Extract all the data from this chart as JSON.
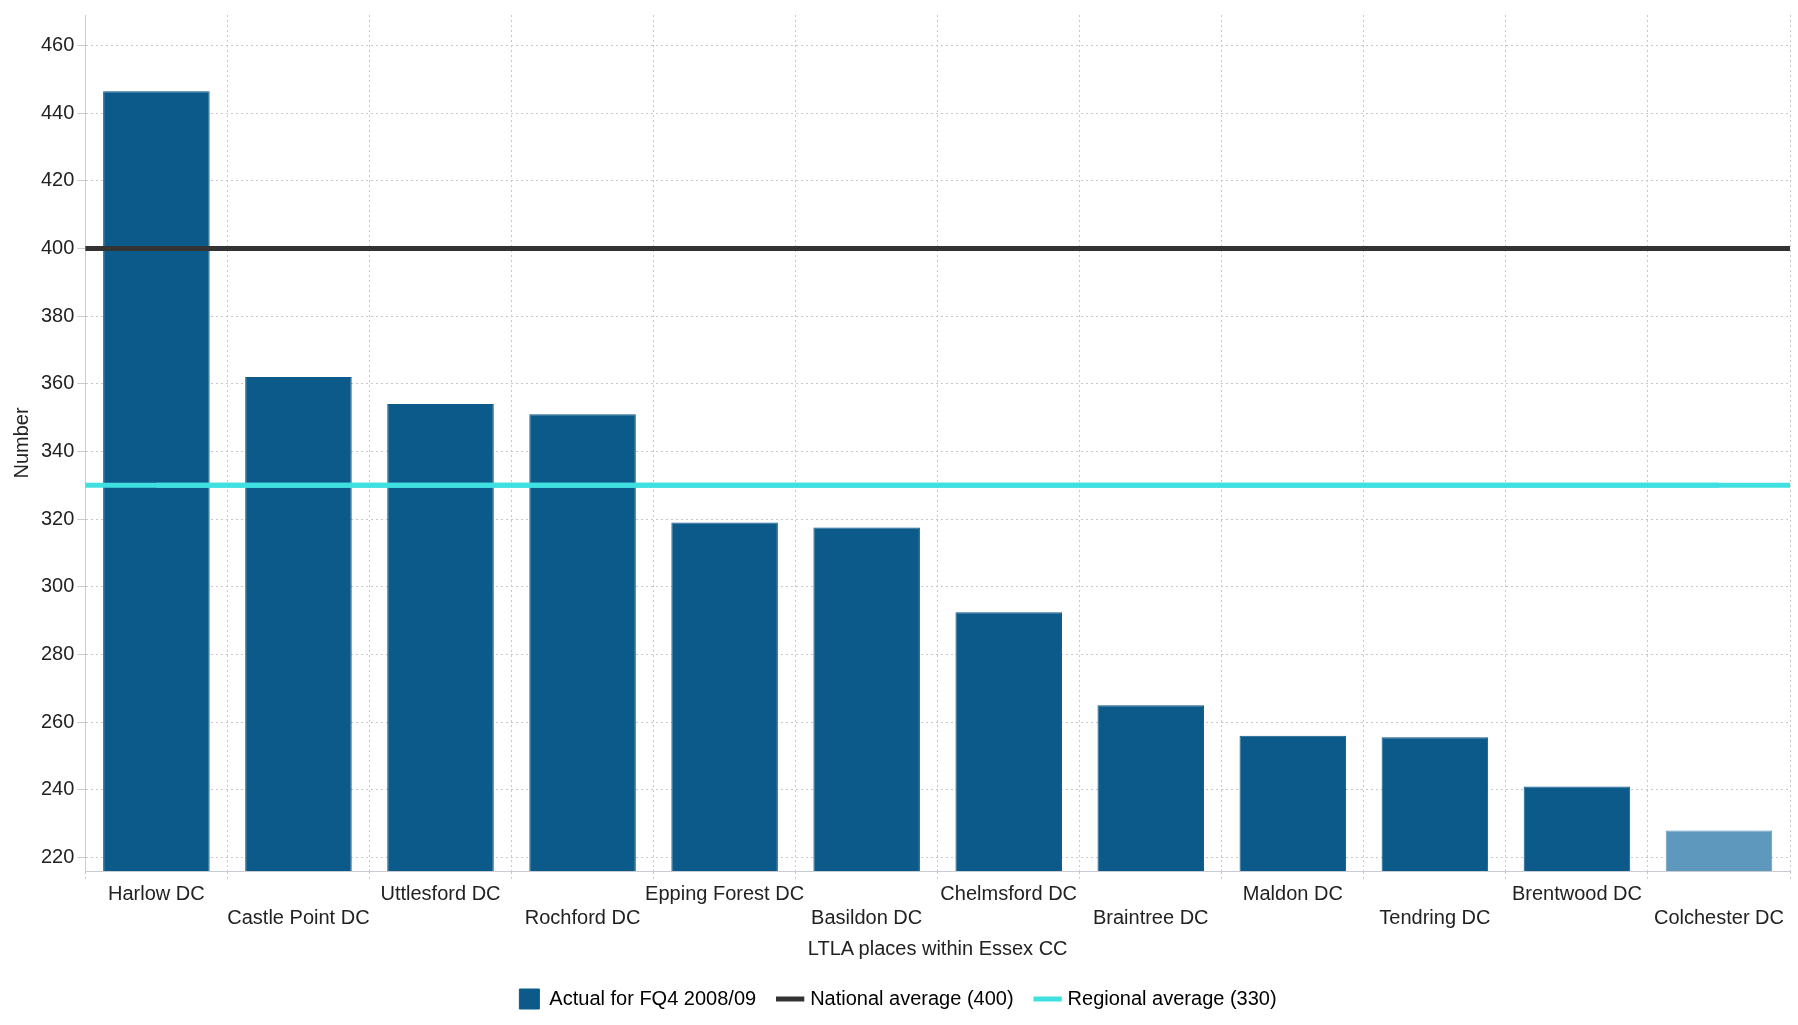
{
  "chart_data": {
    "type": "bar",
    "xlabel": "LTLA places within Essex CC",
    "ylabel": "Number",
    "categories": [
      "Harlow DC",
      "Castle Point DC",
      "Uttlesford DC",
      "Rochford DC",
      "Epping Forest DC",
      "Basildon DC",
      "Chelmsford DC",
      "Braintree DC",
      "Maldon DC",
      "Tendring DC",
      "Brentwood DC",
      "Colchester DC"
    ],
    "series": [
      {
        "name": "Actual for FQ4 2008/09",
        "color": "#0b5a8a",
        "colors": [
          "#0b5a8a",
          "#0b5a8a",
          "#0b5a8a",
          "#0b5a8a",
          "#0b5a8a",
          "#0b5a8a",
          "#0b5a8a",
          "#0b5a8a",
          "#0b5a8a",
          "#0b5a8a",
          "#0b5a8a",
          "#5e99bd"
        ],
        "values": [
          446.5,
          362,
          354,
          351,
          319,
          317.5,
          292.5,
          265,
          256,
          255.5,
          241,
          228
        ]
      }
    ],
    "ylim": [
      216,
      469
    ],
    "yticks": [
      220,
      240,
      260,
      280,
      300,
      320,
      340,
      360,
      380,
      400,
      420,
      440,
      460
    ],
    "ref_lines": [
      {
        "axis": "y",
        "value": 400,
        "label": "National average (400)",
        "color": "#333333"
      },
      {
        "axis": "y",
        "value": 330,
        "label": "Regional average (330)",
        "color": "#40e0e0"
      }
    ],
    "grid": true,
    "legend": "bottom"
  }
}
